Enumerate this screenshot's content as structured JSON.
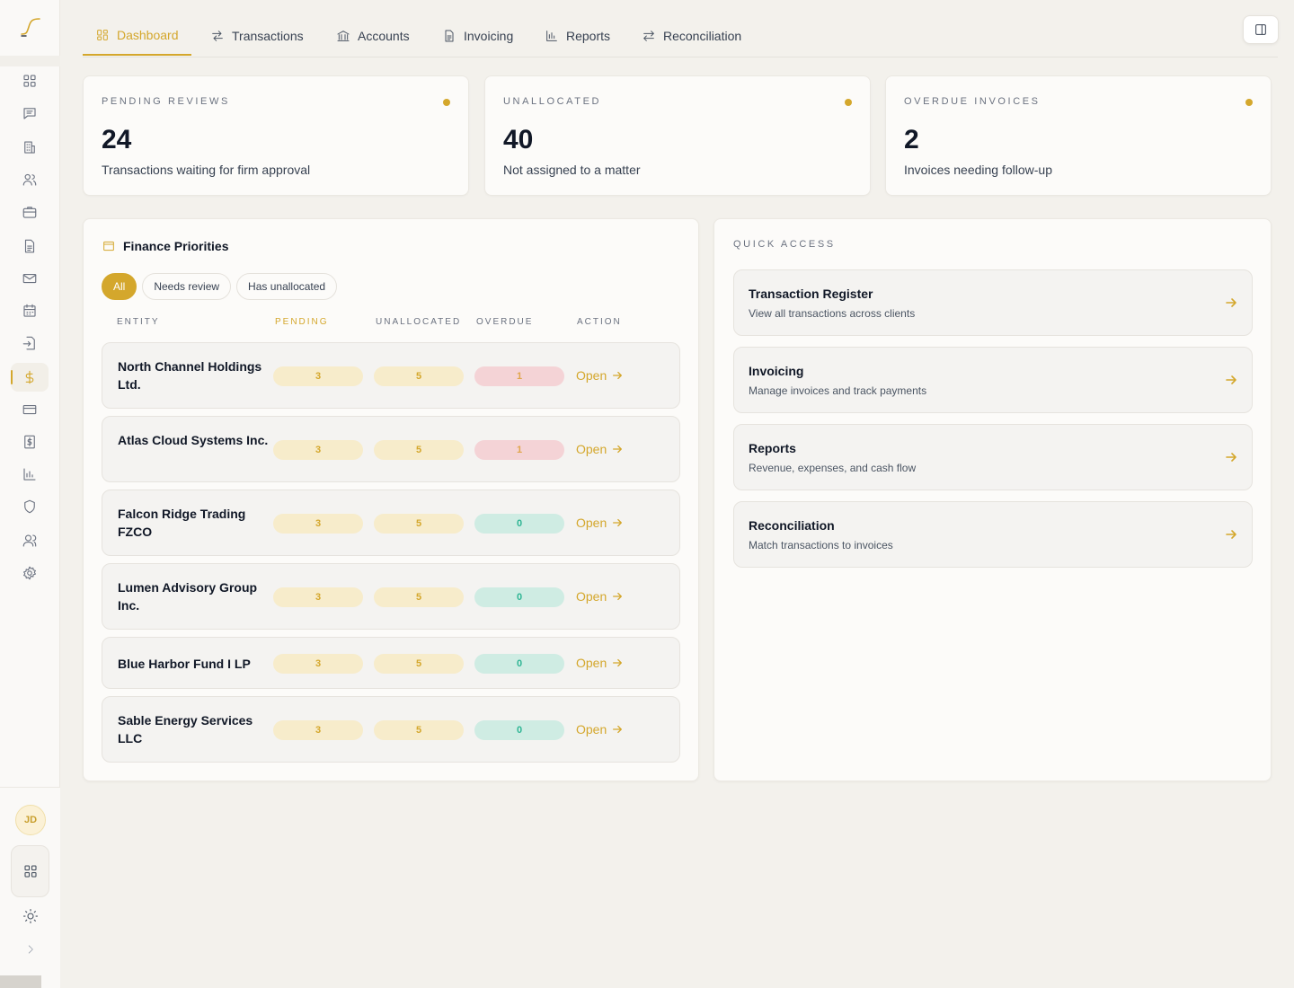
{
  "nav": {
    "tabs": [
      {
        "label": "Dashboard",
        "icon": "dashboard-icon",
        "active": true
      },
      {
        "label": "Transactions",
        "icon": "transfer-icon"
      },
      {
        "label": "Accounts",
        "icon": "bank-icon"
      },
      {
        "label": "Invoicing",
        "icon": "document-icon"
      },
      {
        "label": "Reports",
        "icon": "bar-chart-icon"
      },
      {
        "label": "Reconciliation",
        "icon": "swap-icon"
      }
    ]
  },
  "sidebar": {
    "icons": [
      "grid-icon",
      "messages-icon",
      "building-icon",
      "users-icon",
      "briefcase-icon",
      "file-icon",
      "mail-icon",
      "calendar-icon",
      "import-icon",
      "dollar-icon",
      "credit-card-icon",
      "invoice-dollar-icon",
      "chart-icon",
      "shield-icon",
      "contacts-icon",
      "settings-icon"
    ],
    "active_icon": "dollar-icon",
    "avatar_initials": "JD"
  },
  "stats": [
    {
      "label": "PENDING REVIEWS",
      "value": "24",
      "desc": "Transactions waiting for firm approval"
    },
    {
      "label": "UNALLOCATED",
      "value": "40",
      "desc": "Not assigned to a matter"
    },
    {
      "label": "OVERDUE INVOICES",
      "value": "2",
      "desc": "Invoices needing follow-up"
    }
  ],
  "priorities": {
    "title": "Finance Priorities",
    "filters": [
      "All",
      "Needs review",
      "Has unallocated"
    ],
    "active_filter": "All",
    "columns": {
      "entity": "ENTITY",
      "pending": "PENDING",
      "unallocated": "UNALLOCATED",
      "overdue": "OVERDUE",
      "action": "ACTION"
    },
    "action_label": "Open",
    "rows": [
      {
        "name": "North Channel Holdings Ltd.",
        "pending": "3",
        "unallocated": "5",
        "overdue": "1",
        "overdue_status": "red"
      },
      {
        "name": "Atlas Cloud Systems Inc.",
        "pending": "3",
        "unallocated": "5",
        "overdue": "1",
        "overdue_status": "red"
      },
      {
        "name": "Falcon Ridge Trading FZCO",
        "pending": "3",
        "unallocated": "5",
        "overdue": "0",
        "overdue_status": "green"
      },
      {
        "name": "Lumen Advisory Group Inc.",
        "pending": "3",
        "unallocated": "5",
        "overdue": "0",
        "overdue_status": "green"
      },
      {
        "name": "Blue Harbor Fund I LP",
        "pending": "3",
        "unallocated": "5",
        "overdue": "0",
        "overdue_status": "green"
      },
      {
        "name": "Sable Energy Services LLC",
        "pending": "3",
        "unallocated": "5",
        "overdue": "0",
        "overdue_status": "green"
      }
    ]
  },
  "quick_access": {
    "label": "QUICK ACCESS",
    "items": [
      {
        "title": "Transaction Register",
        "sub": "View all transactions across clients"
      },
      {
        "title": "Invoicing",
        "sub": "Manage invoices and track payments"
      },
      {
        "title": "Reports",
        "sub": "Revenue, expenses, and cash flow"
      },
      {
        "title": "Reconciliation",
        "sub": "Match transactions to invoices"
      }
    ]
  },
  "colors": {
    "accent": "#d4a72c",
    "danger_bg": "#f4d3d6",
    "success_bg": "#cfece3",
    "pending_bg": "#f7eccb"
  }
}
